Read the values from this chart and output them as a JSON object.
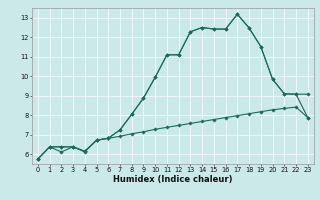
{
  "xlabel": "Humidex (Indice chaleur)",
  "bg_color": "#cce9e9",
  "line_color": "#1a6b5a",
  "xlim": [
    -0.5,
    23.5
  ],
  "ylim": [
    5.5,
    13.5
  ],
  "xticks": [
    0,
    1,
    2,
    3,
    4,
    5,
    6,
    7,
    8,
    9,
    10,
    11,
    12,
    13,
    14,
    15,
    16,
    17,
    18,
    19,
    20,
    21,
    22,
    23
  ],
  "yticks": [
    6,
    7,
    8,
    9,
    10,
    11,
    12,
    13
  ],
  "line1_x": [
    0,
    1,
    2,
    3,
    4,
    5,
    6,
    7,
    8,
    9,
    10,
    11,
    12,
    13,
    14,
    15,
    16,
    17,
    18,
    19,
    20,
    21,
    22,
    23
  ],
  "line1_y": [
    5.75,
    6.38,
    6.38,
    6.38,
    6.15,
    6.72,
    6.82,
    6.92,
    7.05,
    7.15,
    7.28,
    7.38,
    7.48,
    7.58,
    7.68,
    7.78,
    7.88,
    7.98,
    8.08,
    8.18,
    8.28,
    8.35,
    8.42,
    7.88
  ],
  "line2_x": [
    0,
    1,
    2,
    3,
    4,
    5,
    6,
    7,
    8,
    9,
    10,
    11,
    12,
    13,
    14,
    15,
    16,
    17,
    18,
    19,
    20,
    21,
    22,
    23
  ],
  "line2_y": [
    5.75,
    6.38,
    6.38,
    6.38,
    6.15,
    6.72,
    6.82,
    7.25,
    8.05,
    8.88,
    9.95,
    11.1,
    11.1,
    12.28,
    12.5,
    12.42,
    12.42,
    13.18,
    12.48,
    11.52,
    9.85,
    9.1,
    9.08,
    7.88
  ],
  "line3_x": [
    0,
    1,
    2,
    3,
    4,
    5,
    6,
    7,
    8,
    9,
    10,
    11,
    12,
    13,
    14,
    15,
    16,
    17,
    18,
    19,
    20,
    21,
    22,
    23
  ],
  "line3_y": [
    5.75,
    6.38,
    6.12,
    6.38,
    6.12,
    6.72,
    6.82,
    7.25,
    8.05,
    8.88,
    9.95,
    11.1,
    11.1,
    12.28,
    12.5,
    12.42,
    12.42,
    13.18,
    12.48,
    11.52,
    9.85,
    9.1,
    9.08,
    9.08
  ]
}
